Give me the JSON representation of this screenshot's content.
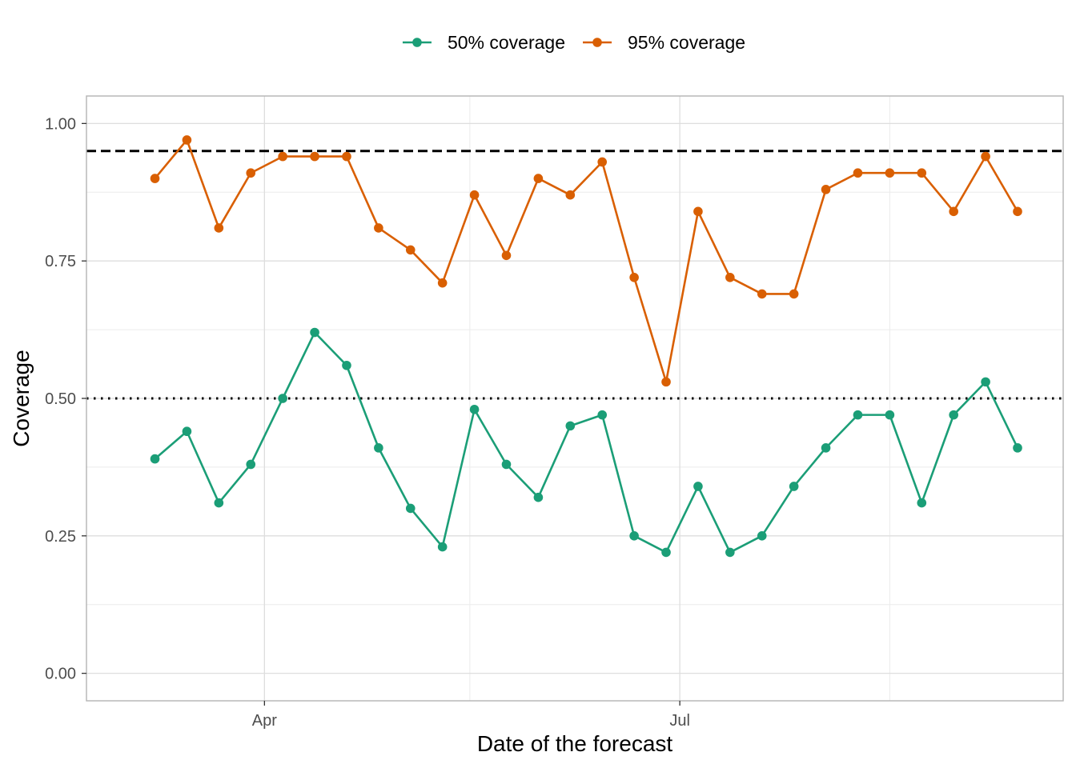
{
  "chart_data": {
    "type": "line",
    "xlabel": "Date of the forecast",
    "ylabel": "Coverage",
    "x_tick_labels": [
      {
        "label": "Apr",
        "date": "2021-04-01"
      },
      {
        "label": "Jul",
        "date": "2021-07-01"
      }
    ],
    "x_minor_ticks": [
      "2021-05-16",
      "2021-08-16"
    ],
    "xlim": [
      "2021-02-21",
      "2021-09-23"
    ],
    "ylim": [
      -0.05,
      1.05
    ],
    "y_ticks": [
      0.0,
      0.25,
      0.5,
      0.75,
      1.0
    ],
    "y_tick_labels": [
      "0.00",
      "0.25",
      "0.50",
      "0.75",
      "1.00"
    ],
    "grid": true,
    "legend_position": "top",
    "reference_lines": [
      {
        "y": 0.95,
        "style": "dashed",
        "color": "#000000"
      },
      {
        "y": 0.5,
        "style": "dotted",
        "color": "#000000"
      }
    ],
    "x": [
      "2021-03-08",
      "2021-03-15",
      "2021-03-22",
      "2021-03-29",
      "2021-04-05",
      "2021-04-12",
      "2021-04-19",
      "2021-04-26",
      "2021-05-03",
      "2021-05-10",
      "2021-05-17",
      "2021-05-24",
      "2021-05-31",
      "2021-06-07",
      "2021-06-14",
      "2021-06-21",
      "2021-06-28",
      "2021-07-05",
      "2021-07-12",
      "2021-07-19",
      "2021-07-26",
      "2021-08-02",
      "2021-08-09",
      "2021-08-16",
      "2021-08-23",
      "2021-08-30",
      "2021-09-06",
      "2021-09-13"
    ],
    "series": [
      {
        "name": "50% coverage",
        "color": "#1b9e77",
        "values": [
          0.39,
          0.44,
          0.31,
          0.38,
          0.5,
          0.62,
          0.56,
          0.41,
          0.3,
          0.23,
          0.48,
          0.38,
          0.32,
          0.45,
          0.47,
          0.25,
          0.22,
          0.34,
          0.22,
          0.25,
          0.34,
          0.41,
          0.47,
          0.47,
          0.31,
          0.47,
          0.53,
          0.41
        ]
      },
      {
        "name": "95% coverage",
        "color": "#d95f02",
        "values": [
          0.9,
          0.97,
          0.81,
          0.91,
          0.94,
          0.94,
          0.94,
          0.81,
          0.77,
          0.71,
          0.87,
          0.76,
          0.9,
          0.87,
          0.93,
          0.72,
          0.53,
          0.84,
          0.72,
          0.69,
          0.69,
          0.88,
          0.91,
          0.91,
          0.91,
          0.84,
          0.94,
          0.84
        ]
      }
    ]
  }
}
